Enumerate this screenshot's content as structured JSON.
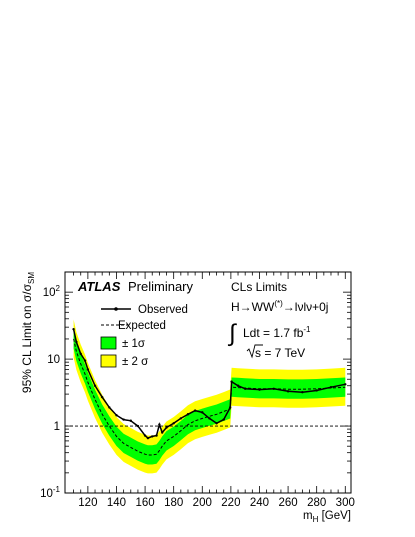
{
  "chart_data": {
    "type": "line",
    "experiment": "ATLAS",
    "status": "Preliminary",
    "method": "CLs Limits",
    "channel": {
      "prefix": "H→WW",
      "sup": "(*)",
      "suffix": "→lνlν+0j"
    },
    "lumi": {
      "main": "Ldt = 1.7 fb",
      "sup": "-1"
    },
    "energy": {
      "root": "s",
      "rest": " = 7 TeV"
    },
    "xlabel": {
      "main": "m",
      "sub": "H",
      "unit": " [GeV]"
    },
    "ylabel": {
      "main": "95% CL Limit on σ/σ",
      "sub": "SM"
    },
    "x_ticks": [
      120,
      140,
      160,
      180,
      200,
      220,
      240,
      260,
      280,
      300
    ],
    "y_ticks": [
      {
        "value": 0.1,
        "mant": "10",
        "exp": "-1"
      },
      {
        "value": 1,
        "mant": "1",
        "exp": ""
      },
      {
        "value": 10,
        "mant": "10",
        "exp": ""
      },
      {
        "value": 100,
        "mant": "10",
        "exp": "2"
      }
    ],
    "xlim": [
      104,
      304
    ],
    "ylim": [
      0.1,
      200
    ],
    "y_scale": "log",
    "reference_line": 1,
    "legend": {
      "position": "top-left",
      "observed": "Observed",
      "expected": "Expected",
      "band1": "± 1σ",
      "band2": "± 2 σ"
    },
    "colors": {
      "band1": "#00ff00",
      "band2": "#ffff00",
      "line": "#000000"
    },
    "x": [
      110,
      112,
      115,
      118,
      120,
      125,
      130,
      135,
      140,
      145,
      150,
      155,
      160,
      162,
      165,
      168,
      170,
      172,
      175,
      180,
      185,
      190,
      195,
      200,
      205,
      210,
      215,
      219.5,
      220.5,
      225,
      230,
      240,
      250,
      260,
      270,
      280,
      290,
      300
    ],
    "series": [
      {
        "name": "Observed",
        "style": "solid-markers",
        "values": [
          28,
          18,
          12,
          9.5,
          7,
          4,
          2.7,
          1.9,
          1.45,
          1.25,
          1.2,
          1.0,
          0.72,
          0.66,
          0.7,
          0.72,
          1.05,
          0.8,
          0.95,
          1.1,
          1.3,
          1.5,
          1.7,
          1.6,
          1.3,
          1.1,
          1.25,
          1.9,
          4.6,
          4.0,
          3.6,
          3.5,
          3.6,
          3.3,
          3.2,
          3.4,
          3.8,
          4.2
        ]
      },
      {
        "name": "Expected",
        "style": "dashed",
        "values": [
          20,
          13,
          8.5,
          6,
          4.5,
          2.5,
          1.5,
          1.0,
          0.7,
          0.55,
          0.48,
          0.42,
          0.38,
          0.37,
          0.37,
          0.38,
          0.43,
          0.5,
          0.6,
          0.7,
          0.85,
          1.05,
          1.2,
          1.3,
          1.4,
          1.5,
          1.65,
          1.8,
          3.8,
          3.75,
          3.7,
          3.6,
          3.6,
          3.55,
          3.55,
          3.6,
          3.7,
          3.8
        ]
      }
    ],
    "band_1sigma_factor": [
      0.72,
      1.4
    ],
    "band_2sigma_factor": [
      0.53,
      1.95
    ]
  }
}
